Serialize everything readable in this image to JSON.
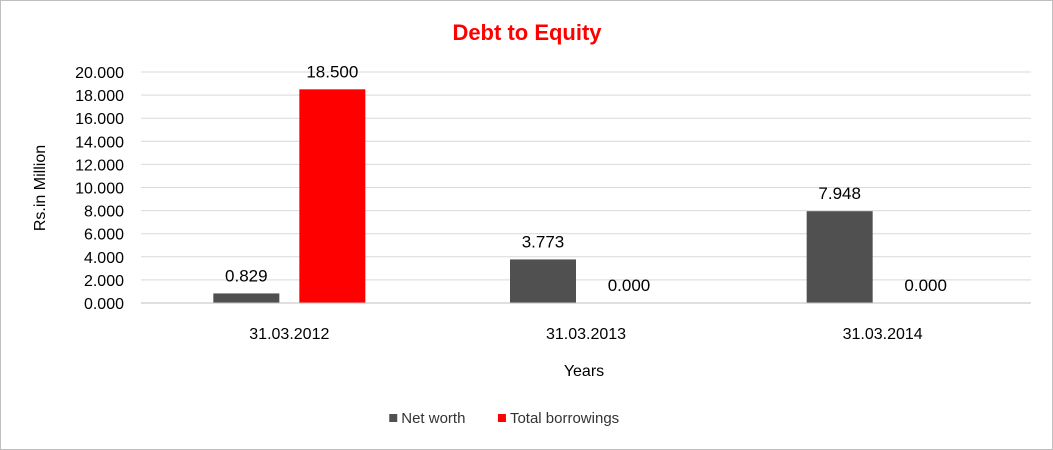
{
  "chart_data": {
    "type": "bar",
    "title": "Debt to Equity",
    "title_color": "#ff0000",
    "xlabel": "Years",
    "ylabel": "Rs.in Million",
    "categories": [
      "31.03.2012",
      "31.03.2013",
      "31.03.2014"
    ],
    "series": [
      {
        "name": "Net worth",
        "color": "#505050",
        "values": [
          0.829,
          3.773,
          7.948
        ],
        "labels": [
          "0.829",
          "3.773",
          "7.948"
        ]
      },
      {
        "name": "Total borrowings",
        "color": "#ff0000",
        "values": [
          18.5,
          0.0,
          0.0
        ],
        "labels": [
          "18.500",
          "0.000",
          "0.000"
        ]
      }
    ],
    "ylim": [
      0,
      20
    ],
    "yticks": [
      "0.000",
      "2.000",
      "4.000",
      "6.000",
      "8.000",
      "10.000",
      "12.000",
      "14.000",
      "16.000",
      "18.000",
      "20.000"
    ],
    "grid": true,
    "legend_position": "bottom"
  }
}
